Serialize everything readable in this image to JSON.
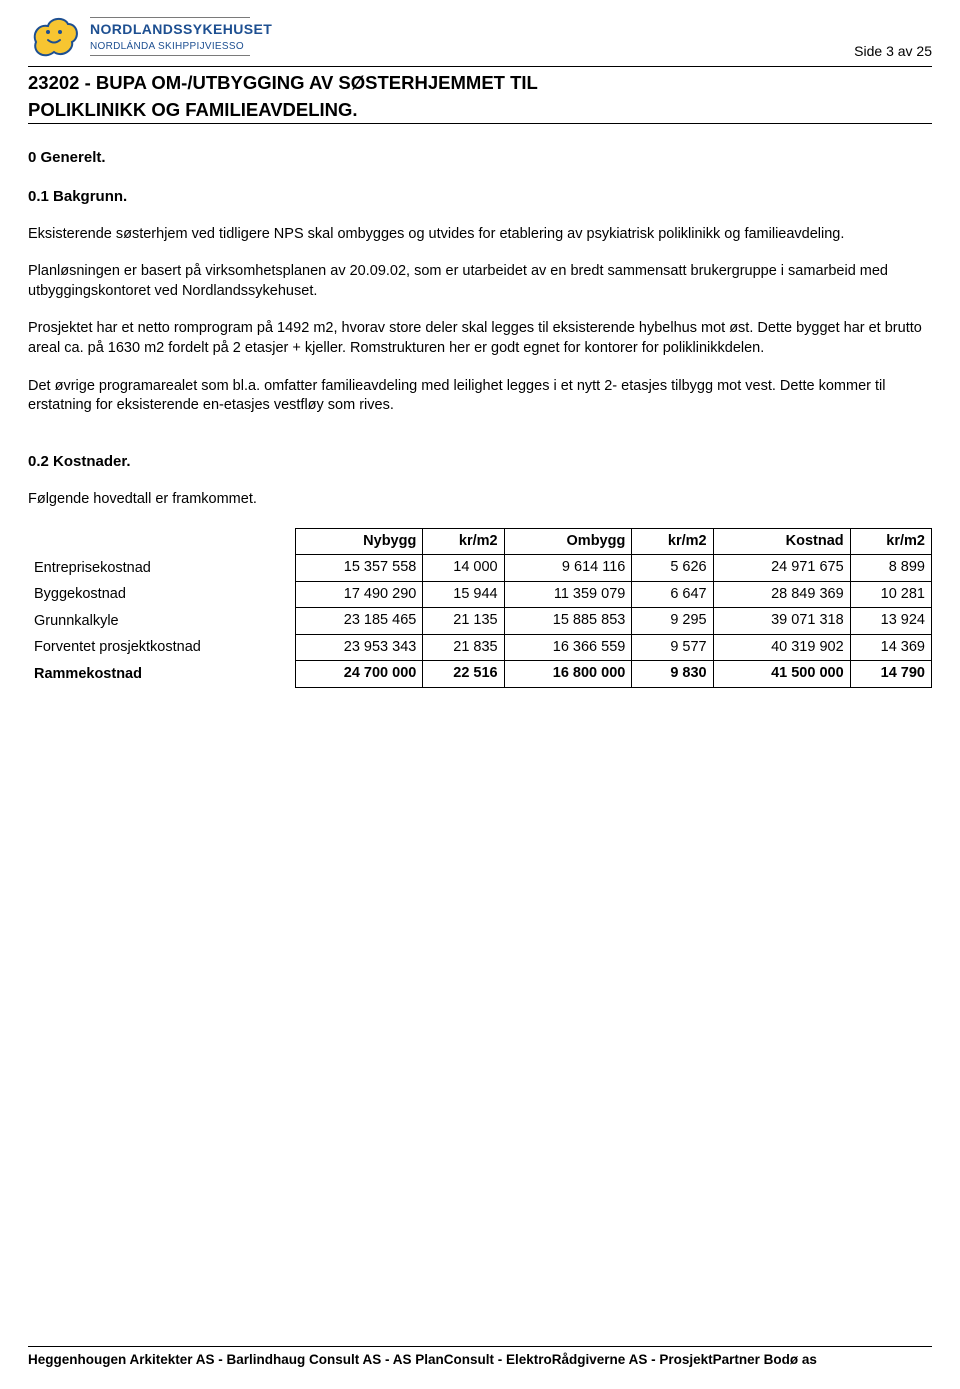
{
  "org": {
    "name1": "NORDLANDSSYKEHUSET",
    "name2": "NORDLÁNDA SKIHPPIJVIESSO"
  },
  "page_label": "Side  3  av  25",
  "title_line1": "23202 - BUPA OM-/UTBYGGING AV SØSTERHJEMMET TIL",
  "title_line2": "POLIKLINIKK OG FAMILIEAVDELING.",
  "sections": {
    "generelt": "0 Generelt.",
    "bakgrunn": "0.1 Bakgrunn.",
    "p1": "Eksisterende søsterhjem ved tidligere NPS skal ombygges og utvides for etablering av psykiatrisk poliklinikk og familieavdeling.",
    "p2": "Planløsningen er basert på virksomhetsplanen av 20.09.02, som er utarbeidet av en bredt sammensatt brukergruppe i samarbeid med utbyggingskontoret ved Nordlandssykehuset.",
    "p3": "Prosjektet har et netto romprogram på 1492 m2, hvorav store deler skal legges til eksisterende hybelhus mot øst. Dette bygget har et brutto areal ca. på 1630 m2 fordelt på 2 etasjer + kjeller. Romstrukturen her er godt egnet for kontorer for poliklinikkdelen.",
    "p4": "Det øvrige programarealet som bl.a. omfatter familieavdeling med leilighet legges i et nytt 2- etasjes tilbygg mot vest. Dette kommer til erstatning for eksisterende en-etasjes vestfløy som rives."
  },
  "kost": {
    "heading": "0.2 Kostnader.",
    "intro": "Følgende hovedtall er framkommet.",
    "columns": [
      "Nybygg",
      "kr/m2",
      "Ombygg",
      "kr/m2",
      "Kostnad",
      "kr/m2"
    ],
    "rows": [
      {
        "label": "Entreprisekostnad",
        "vals": [
          "15 357 558",
          "14 000",
          "9 614 116",
          "5 626",
          "24 971 675",
          "8 899"
        ]
      },
      {
        "label": "Byggekostnad",
        "vals": [
          "17 490 290",
          "15 944",
          "11 359 079",
          "6 647",
          "28 849 369",
          "10 281"
        ]
      },
      {
        "label": "Grunnkalkyle",
        "vals": [
          "23 185 465",
          "21 135",
          "15 885 853",
          "9 295",
          "39 071 318",
          "13 924"
        ]
      },
      {
        "label": "Forventet prosjektkostnad",
        "vals": [
          "23 953 343",
          "21 835",
          "16 366 559",
          "9 577",
          "40 319 902",
          "14 369"
        ]
      },
      {
        "label": "Rammekostnad",
        "vals": [
          "24 700 000",
          "22 516",
          "16 800 000",
          "9 830",
          "41 500 000",
          "14 790"
        ]
      }
    ]
  },
  "footer": "Heggenhougen Arkitekter AS - Barlindhaug Consult AS -  AS PlanConsult -  ElektroRådgiverne AS -  ProsjektPartner Bodø as",
  "colors": {
    "brand_blue": "#1d4f91",
    "logo_yellow": "#f7c531",
    "text": "#000000",
    "background": "#ffffff",
    "rule_gray": "#7a7a7a"
  }
}
